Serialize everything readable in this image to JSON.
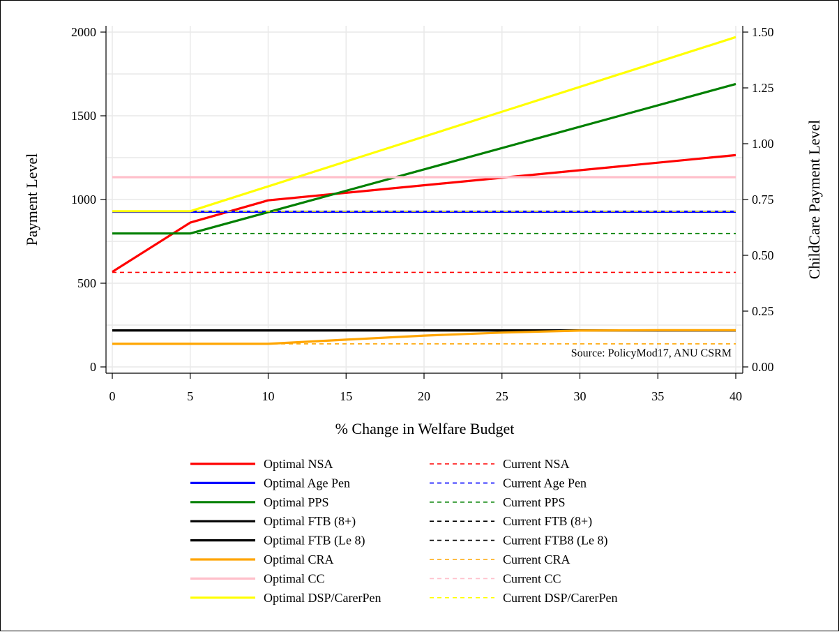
{
  "chart_data": {
    "type": "line",
    "xlabel": "% Change in Welfare Budget",
    "ylabel": "Payment Level",
    "y2label": "ChildCare Payment Level",
    "xlim": [
      0,
      40
    ],
    "ylim": [
      0,
      2000
    ],
    "y2lim": [
      0,
      1.5
    ],
    "xticks": [
      0,
      5,
      10,
      15,
      20,
      25,
      30,
      35,
      40
    ],
    "yticks": [
      0,
      500,
      1000,
      1500,
      2000
    ],
    "y2ticks": [
      "0.00",
      "0.25",
      "0.50",
      "0.75",
      "1.00",
      "1.25",
      "1.50"
    ],
    "grid": true,
    "annotation": "Source: PolicyMod17, ANU CSRM",
    "legend_position": "bottom",
    "series": [
      {
        "name": "Optimal NSA",
        "color": "#ff0000",
        "style": "solid",
        "x": [
          0,
          5,
          10,
          40
        ],
        "y": [
          568,
          862,
          995,
          1265
        ]
      },
      {
        "name": "Current NSA",
        "color": "#ff0000",
        "style": "dashed",
        "x": [
          0,
          40
        ],
        "y": [
          565,
          565
        ]
      },
      {
        "name": "Optimal Age Pen",
        "color": "#0000ff",
        "style": "solid",
        "x": [
          0,
          40
        ],
        "y": [
          927,
          927
        ]
      },
      {
        "name": "Current Age Pen",
        "color": "#0000ff",
        "style": "dashed",
        "x": [
          0,
          40
        ],
        "y": [
          927,
          927
        ]
      },
      {
        "name": "Optimal PPS",
        "color": "#008000",
        "style": "solid",
        "x": [
          0,
          5,
          40
        ],
        "y": [
          797,
          797,
          1690
        ]
      },
      {
        "name": "Current PPS",
        "color": "#008000",
        "style": "dashed",
        "x": [
          0,
          40
        ],
        "y": [
          797,
          797
        ]
      },
      {
        "name": "Optimal FTB (8+)",
        "color": "#000000",
        "style": "solid",
        "x": [
          0,
          40
        ],
        "y": [
          218,
          218
        ]
      },
      {
        "name": "Current FTB (8+)",
        "color": "#000000",
        "style": "dashed",
        "x": [
          0,
          40
        ],
        "y": [
          218,
          218
        ]
      },
      {
        "name": "Optimal FTB (Le 8)",
        "color": "#000000",
        "style": "solid",
        "x": [
          0,
          40
        ],
        "y": [
          218,
          218
        ]
      },
      {
        "name": "Current FTB8 (Le 8)",
        "color": "#000000",
        "style": "dashed",
        "x": [
          0,
          40
        ],
        "y": [
          218,
          218
        ]
      },
      {
        "name": "Optimal CRA",
        "color": "#ffa500",
        "style": "solid",
        "x": [
          0,
          10,
          15,
          20,
          25,
          30,
          35,
          40
        ],
        "y": [
          138,
          138,
          163,
          187,
          205,
          217,
          219,
          219
        ]
      },
      {
        "name": "Current CRA",
        "color": "#ffa500",
        "style": "dashed",
        "x": [
          0,
          40
        ],
        "y": [
          138,
          138
        ]
      },
      {
        "name": "Optimal CC",
        "color": "#ffc0cb",
        "style": "solid",
        "axis": "right",
        "x": [
          0,
          40
        ],
        "y": [
          0.85,
          0.85
        ]
      },
      {
        "name": "Current CC",
        "color": "#ffc0cb",
        "style": "dashed",
        "axis": "right",
        "x": [
          0,
          40
        ],
        "y": [
          0.85,
          0.85
        ]
      },
      {
        "name": "Optimal DSP/CarerPen",
        "color": "#ffff00",
        "style": "solid",
        "x": [
          0,
          5,
          40
        ],
        "y": [
          930,
          930,
          1970
        ]
      },
      {
        "name": "Current DSP/CarerPen",
        "color": "#ffff00",
        "style": "dashed",
        "x": [
          0,
          40
        ],
        "y": [
          930,
          930
        ]
      }
    ],
    "legend_left": [
      "Optimal NSA",
      "Optimal Age Pen",
      "Optimal PPS",
      "Optimal FTB (8+)",
      "Optimal FTB (Le 8)",
      "Optimal CRA",
      "Optimal CC",
      "Optimal DSP/CarerPen"
    ],
    "legend_right": [
      "Current NSA",
      "Current Age Pen",
      "Current PPS",
      "Current FTB (8+)",
      "Current FTB8 (Le 8)",
      "Current CRA",
      "Current CC",
      "Current DSP/CarerPen"
    ]
  }
}
